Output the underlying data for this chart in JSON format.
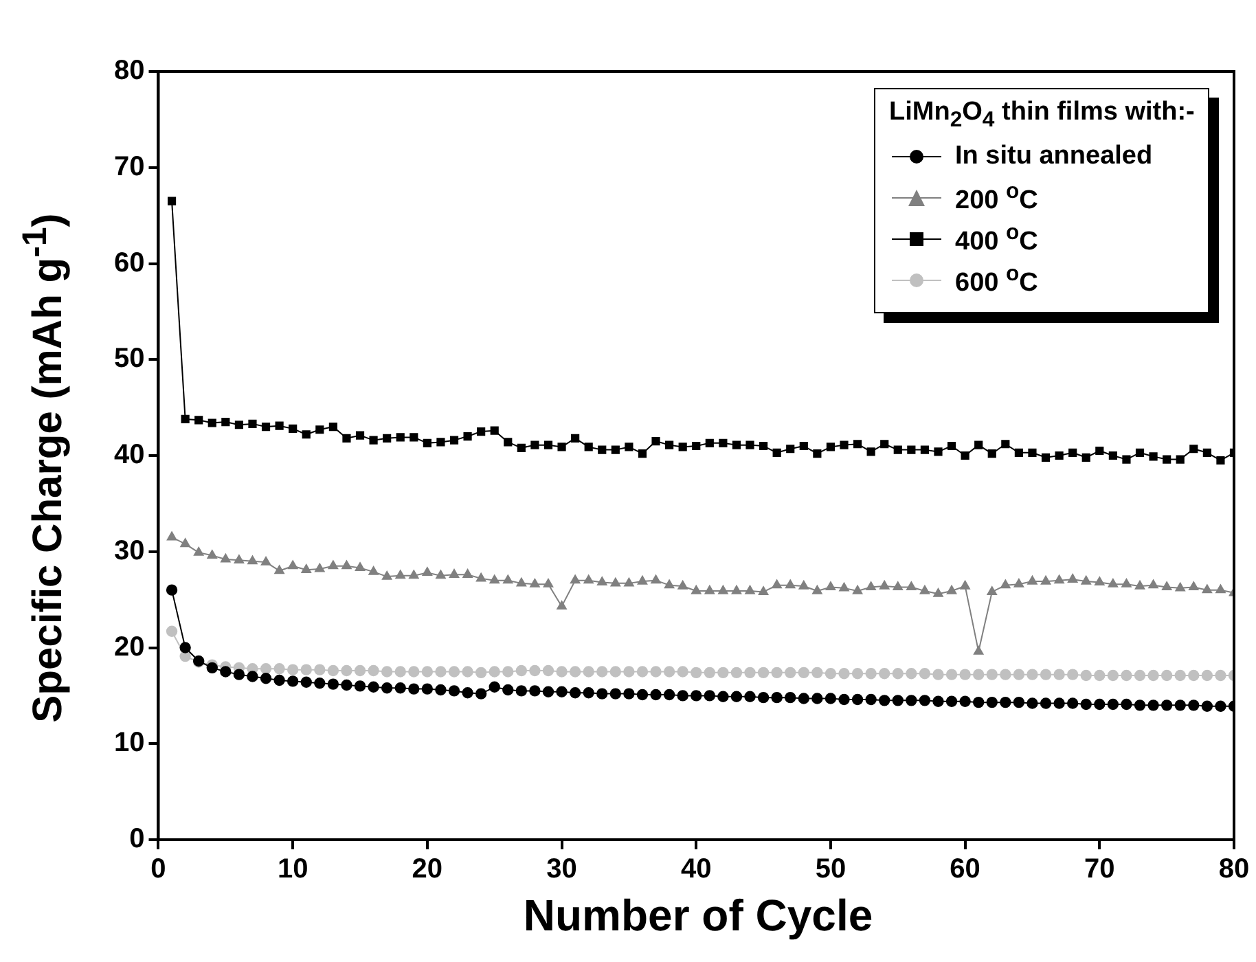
{
  "chart_data": {
    "type": "line",
    "xlabel": "Number of Cycle",
    "ylabel": "Specific Charge (mAh g$^{-1}$)",
    "legend_title": "LiMn$_{2}$O$_{4}$ thin films with:-",
    "x": [
      1,
      2,
      3,
      4,
      5,
      6,
      7,
      8,
      9,
      10,
      11,
      12,
      13,
      14,
      15,
      16,
      17,
      18,
      19,
      20,
      21,
      22,
      23,
      24,
      25,
      26,
      27,
      28,
      29,
      30,
      31,
      32,
      33,
      34,
      35,
      36,
      37,
      38,
      39,
      40,
      41,
      42,
      43,
      44,
      45,
      46,
      47,
      48,
      49,
      50,
      51,
      52,
      53,
      54,
      55,
      56,
      57,
      58,
      59,
      60,
      61,
      62,
      63,
      64,
      65,
      66,
      67,
      68,
      69,
      70,
      71,
      72,
      73,
      74,
      75,
      76,
      77,
      78,
      79,
      80
    ],
    "series": [
      {
        "name": "In situ annealed",
        "color": "#000000",
        "marker": "circle",
        "values": [
          26.0,
          20.0,
          18.6,
          17.9,
          17.5,
          17.2,
          17.0,
          16.8,
          16.6,
          16.5,
          16.4,
          16.3,
          16.2,
          16.1,
          16.0,
          15.9,
          15.8,
          15.8,
          15.7,
          15.7,
          15.6,
          15.5,
          15.3,
          15.2,
          15.9,
          15.6,
          15.5,
          15.5,
          15.4,
          15.4,
          15.3,
          15.3,
          15.2,
          15.2,
          15.2,
          15.1,
          15.1,
          15.1,
          15.0,
          15.0,
          15.0,
          14.9,
          14.9,
          14.9,
          14.8,
          14.8,
          14.8,
          14.7,
          14.7,
          14.7,
          14.6,
          14.6,
          14.6,
          14.5,
          14.5,
          14.5,
          14.5,
          14.4,
          14.4,
          14.4,
          14.3,
          14.3,
          14.3,
          14.3,
          14.2,
          14.2,
          14.2,
          14.2,
          14.1,
          14.1,
          14.1,
          14.1,
          14.0,
          14.0,
          14.0,
          14.0,
          14.0,
          13.9,
          13.9,
          13.9
        ]
      },
      {
        "name": "200 $^{o}$C",
        "color": "#808080",
        "marker": "triangle",
        "values": [
          31.5,
          30.8,
          29.9,
          29.6,
          29.2,
          29.1,
          29.0,
          28.9,
          28.0,
          28.5,
          28.1,
          28.2,
          28.5,
          28.5,
          28.3,
          27.9,
          27.4,
          27.5,
          27.5,
          27.8,
          27.5,
          27.6,
          27.6,
          27.2,
          27.0,
          27.0,
          26.7,
          26.6,
          26.6,
          24.3,
          27.0,
          27.0,
          26.8,
          26.7,
          26.7,
          26.9,
          27.0,
          26.5,
          26.4,
          25.9,
          25.9,
          25.9,
          25.9,
          25.9,
          25.8,
          26.5,
          26.5,
          26.4,
          25.9,
          26.3,
          26.2,
          25.9,
          26.3,
          26.4,
          26.3,
          26.3,
          25.9,
          25.6,
          25.9,
          26.4,
          19.6,
          25.8,
          26.5,
          26.6,
          26.9,
          26.9,
          27.0,
          27.1,
          26.9,
          26.8,
          26.6,
          26.6,
          26.4,
          26.5,
          26.3,
          26.2,
          26.3,
          26.0,
          26.0,
          25.7
        ]
      },
      {
        "name": "400 $^{o}$C",
        "color": "#000000",
        "marker": "square",
        "values": [
          66.5,
          43.8,
          43.7,
          43.4,
          43.5,
          43.2,
          43.3,
          43.0,
          43.1,
          42.8,
          42.2,
          42.7,
          43.0,
          41.8,
          42.1,
          41.6,
          41.8,
          41.9,
          41.9,
          41.3,
          41.4,
          41.6,
          42.0,
          42.5,
          42.6,
          41.4,
          40.8,
          41.1,
          41.1,
          40.9,
          41.8,
          40.9,
          40.6,
          40.6,
          40.9,
          40.2,
          41.5,
          41.1,
          40.9,
          41.0,
          41.3,
          41.3,
          41.1,
          41.1,
          41.0,
          40.3,
          40.7,
          41.0,
          40.2,
          40.9,
          41.1,
          41.2,
          40.4,
          41.2,
          40.6,
          40.6,
          40.6,
          40.4,
          41.0,
          40.0,
          41.1,
          40.2,
          41.2,
          40.3,
          40.3,
          39.8,
          40.0,
          40.3,
          39.8,
          40.5,
          40.0,
          39.6,
          40.3,
          39.9,
          39.6,
          39.6,
          40.7,
          40.3,
          39.5,
          40.3
        ]
      },
      {
        "name": "600 $^{o}$C",
        "color": "#c0c0c0",
        "marker": "circle",
        "values": [
          21.7,
          19.1,
          18.5,
          18.2,
          18.0,
          17.9,
          17.8,
          17.8,
          17.8,
          17.7,
          17.7,
          17.7,
          17.6,
          17.6,
          17.6,
          17.6,
          17.5,
          17.5,
          17.5,
          17.5,
          17.5,
          17.5,
          17.5,
          17.4,
          17.5,
          17.5,
          17.6,
          17.6,
          17.6,
          17.5,
          17.5,
          17.5,
          17.5,
          17.5,
          17.5,
          17.5,
          17.5,
          17.5,
          17.5,
          17.4,
          17.4,
          17.4,
          17.4,
          17.4,
          17.4,
          17.4,
          17.4,
          17.4,
          17.4,
          17.3,
          17.3,
          17.3,
          17.3,
          17.3,
          17.3,
          17.3,
          17.3,
          17.2,
          17.2,
          17.2,
          17.2,
          17.2,
          17.2,
          17.2,
          17.2,
          17.2,
          17.2,
          17.2,
          17.1,
          17.1,
          17.1,
          17.1,
          17.1,
          17.1,
          17.1,
          17.1,
          17.1,
          17.1,
          17.1,
          17.1
        ]
      }
    ],
    "xlim": [
      0,
      80
    ],
    "xticks": [
      0,
      10,
      20,
      30,
      40,
      50,
      60,
      70,
      80
    ],
    "ylim": [
      0,
      80
    ],
    "yticks": [
      0,
      10,
      20,
      30,
      40,
      50,
      60,
      70,
      80
    ],
    "legend": "top right"
  }
}
